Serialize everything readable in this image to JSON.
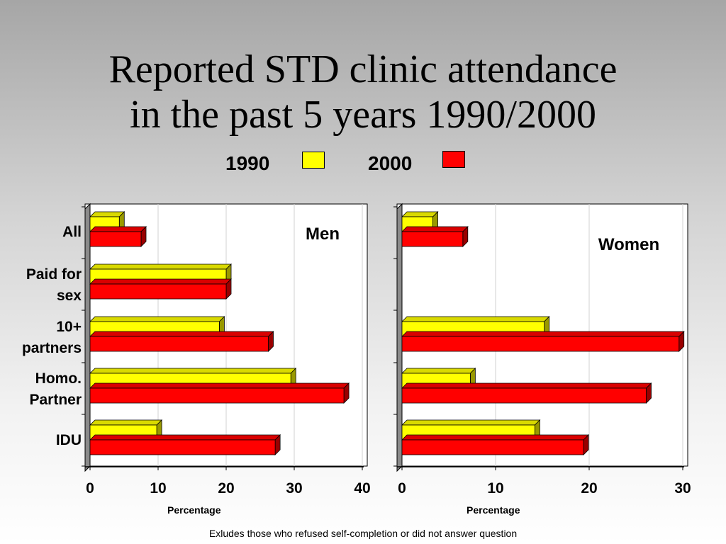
{
  "title": {
    "line1": "Reported STD clinic attendance",
    "line2": "in the past 5 years 1990/2000"
  },
  "legend": [
    {
      "label": "1990",
      "color": "#ffff00"
    },
    {
      "label": "2000",
      "color": "#ff0000"
    }
  ],
  "colors": {
    "1990": "#ffff00",
    "2000": "#ff0000"
  },
  "footnote": "Exludes those who refused self-completion or did not answer question",
  "chart_data": [
    {
      "type": "bar",
      "orientation": "horizontal",
      "title": "Men",
      "categories": [
        "All",
        "Paid for sex",
        "10+ partners",
        "Homo. Partner",
        "IDU"
      ],
      "category_lines": [
        [
          "All"
        ],
        [
          "Paid for",
          "sex"
        ],
        [
          "10+",
          "partners"
        ],
        [
          "Homo.",
          "Partner"
        ],
        [
          "IDU"
        ]
      ],
      "series": [
        {
          "name": "1990",
          "values": [
            4.3,
            20,
            19,
            29.5,
            9.8
          ]
        },
        {
          "name": "2000",
          "values": [
            7.5,
            20,
            26.2,
            37.3,
            27.2
          ]
        }
      ],
      "xlabel": "Percentage",
      "xlim": [
        0,
        40
      ],
      "xticks": [
        0,
        10,
        20,
        30,
        40
      ],
      "grid": true
    },
    {
      "type": "bar",
      "orientation": "horizontal",
      "title": "Women",
      "categories": [
        "All",
        "Paid for sex",
        "10+ partners",
        "Homo. Partner",
        "IDU"
      ],
      "series": [
        {
          "name": "1990",
          "values": [
            3.3,
            0,
            15.2,
            7.3,
            14.2
          ]
        },
        {
          "name": "2000",
          "values": [
            6.5,
            0,
            29.6,
            26.1,
            19.4
          ]
        }
      ],
      "xlabel": "Percentage",
      "xlim": [
        0,
        30
      ],
      "xticks": [
        0,
        10,
        20,
        30
      ],
      "grid": true
    }
  ]
}
